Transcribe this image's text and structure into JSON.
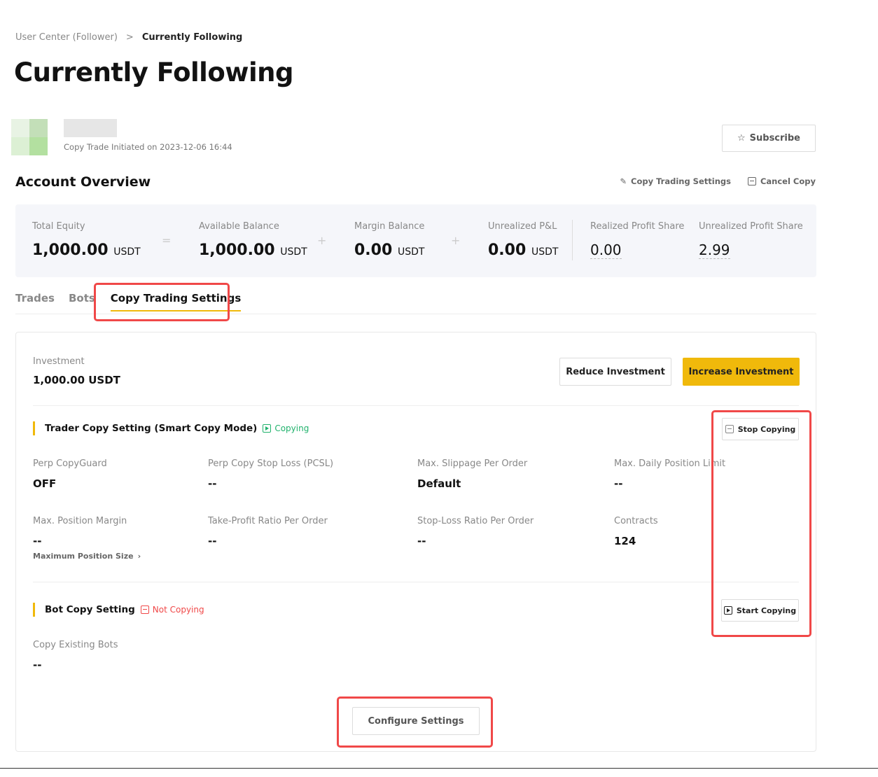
{
  "breadcrumb": {
    "parent": "User Center (Follower)",
    "sep": ">",
    "current": "Currently Following"
  },
  "page_title": "Currently Following",
  "trader": {
    "initiated": "Copy Trade Initiated on 2023-12-06 16:44",
    "subscribe": "Subscribe"
  },
  "account": {
    "title": "Account Overview",
    "settings_link": "Copy Trading Settings",
    "cancel_link": "Cancel Copy",
    "items": [
      {
        "label": "Total Equity",
        "value": "1,000.00",
        "unit": "USDT"
      },
      {
        "label": "Available Balance",
        "value": "1,000.00",
        "unit": "USDT"
      },
      {
        "label": "Margin Balance",
        "value": "0.00",
        "unit": "USDT"
      },
      {
        "label": "Unrealized P&L",
        "value": "0.00",
        "unit": "USDT"
      },
      {
        "label": "Realized Profit Share",
        "value": "0.00"
      },
      {
        "label": "Unrealized Profit Share",
        "value": "2.99"
      }
    ],
    "ops": [
      "=",
      "+",
      "+"
    ]
  },
  "tabs": [
    "Trades",
    "Bots",
    "Copy Trading Settings"
  ],
  "settings": {
    "investment_label": "Investment",
    "investment_value": "1,000.00 USDT",
    "reduce": "Reduce Investment",
    "increase": "Increase Investment",
    "trader_section": "Trader Copy Setting (Smart Copy Mode)",
    "trader_status": "Copying",
    "stop": "Stop Copying",
    "fields": [
      {
        "label": "Perp CopyGuard",
        "value": "OFF"
      },
      {
        "label": "Perp Copy Stop Loss (PCSL)",
        "value": "--"
      },
      {
        "label": "Max. Slippage Per Order",
        "value": "Default"
      },
      {
        "label": "Max. Daily Position Limit",
        "value": "--"
      },
      {
        "label": "Max. Position Margin",
        "value": "--"
      },
      {
        "label": "Take-Profit Ratio Per Order",
        "value": "--"
      },
      {
        "label": "Stop-Loss Ratio Per Order",
        "value": "--"
      },
      {
        "label": "Contracts",
        "value": "124"
      }
    ],
    "max_pos_link": "Maximum Position Size",
    "bot_section": "Bot Copy Setting",
    "bot_status": "Not Copying",
    "start": "Start Copying",
    "bot_field_label": "Copy Existing Bots",
    "bot_field_value": "--",
    "configure": "Configure Settings"
  },
  "colors": {
    "accent": "#f0b90b",
    "green": "#20b26c",
    "red": "#f04848",
    "highlight": "#f04848"
  }
}
